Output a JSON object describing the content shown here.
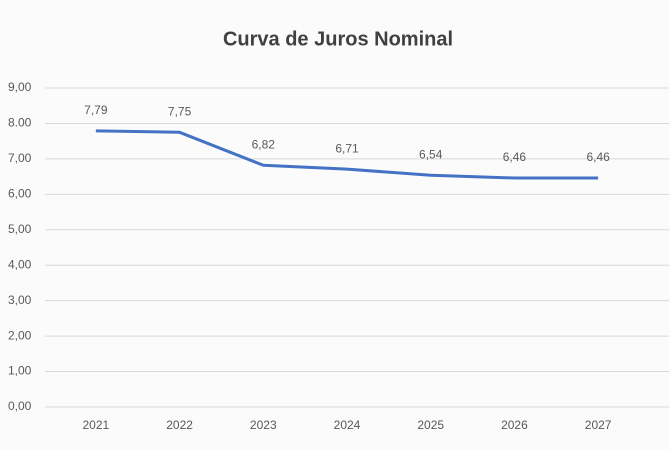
{
  "chart_data": {
    "type": "line",
    "title": "Curva de Juros Nominal",
    "categories": [
      "2021",
      "2022",
      "2023",
      "2024",
      "2025",
      "2026",
      "2027"
    ],
    "series": [
      {
        "name": "Curva de Juros Nominal",
        "color": "#4472c4",
        "values": [
          7.79,
          7.75,
          6.82,
          6.71,
          6.54,
          6.46,
          6.46
        ],
        "value_labels": [
          "7,79",
          "7,75",
          "6,82",
          "6,71",
          "6,54",
          "6,46",
          "6,46"
        ]
      }
    ],
    "ylim": [
      0,
      9
    ],
    "yticks": [
      {
        "value": 0,
        "label": "0,00"
      },
      {
        "value": 1,
        "label": "1,00"
      },
      {
        "value": 2,
        "label": "2,00"
      },
      {
        "value": 3,
        "label": "3,00"
      },
      {
        "value": 4,
        "label": "4,00"
      },
      {
        "value": 5,
        "label": "5,00"
      },
      {
        "value": 6,
        "label": "6,00"
      },
      {
        "value": 7,
        "label": "7,00"
      },
      {
        "value": 8,
        "label": "8.00"
      },
      {
        "value": 9,
        "label": "9,00"
      }
    ],
    "grid": true
  }
}
